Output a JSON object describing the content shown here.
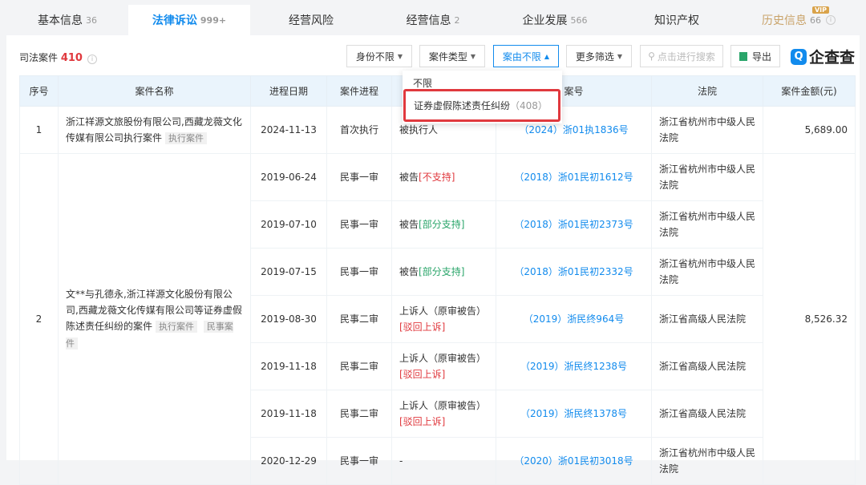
{
  "tabs": [
    {
      "label": "基本信息",
      "count": "36"
    },
    {
      "label": "法律诉讼",
      "count": "999+",
      "active": true
    },
    {
      "label": "经营风险",
      "count": ""
    },
    {
      "label": "经营信息",
      "count": "2"
    },
    {
      "label": "企业发展",
      "count": "566"
    },
    {
      "label": "知识产权",
      "count": ""
    },
    {
      "label": "历史信息",
      "count": "66",
      "badge": "VIP"
    }
  ],
  "section": {
    "title": "司法案件",
    "count": "410"
  },
  "filters": {
    "identity": "身份不限",
    "case_type": "案件类型",
    "cause": "案由不限",
    "more": "更多筛选",
    "search_placeholder": "点击进行搜索",
    "export": "导出"
  },
  "logo": "企查查",
  "dropdown": {
    "options": [
      {
        "label": "不限"
      },
      {
        "label": "证券虚假陈述责任纠纷",
        "count": "（408）",
        "highlighted": true
      }
    ]
  },
  "table": {
    "headers": [
      "序号",
      "案件名称",
      "进程日期",
      "案件进程",
      "",
      "案号",
      "法院",
      "案件金额(元)"
    ],
    "cases": [
      {
        "no": "1",
        "name": "浙江祥源文旅股份有限公司,西藏龙薇文化传媒有限公司执行案件",
        "tags": [
          "执行案件"
        ],
        "amount": "5,689.00",
        "rows": [
          {
            "date": "2024-11-13",
            "stage": "首次执行",
            "role": "被执行人",
            "result": "",
            "result_color": "",
            "case_no": "（2024）浙01执1836号",
            "court": "浙江省杭州市中级人民法院"
          }
        ]
      },
      {
        "no": "2",
        "name": "文**与孔德永,浙江祥源文化股份有限公司,西藏龙薇文化传媒有限公司等证券虚假陈述责任纠纷的案件",
        "tags": [
          "执行案件",
          "民事案件"
        ],
        "amount": "8,526.32",
        "rows": [
          {
            "date": "2019-06-24",
            "stage": "民事一审",
            "role": "被告",
            "result": "[不支持]",
            "result_color": "red",
            "case_no": "（2018）浙01民初1612号",
            "court": "浙江省杭州市中级人民法院"
          },
          {
            "date": "2019-07-10",
            "stage": "民事一审",
            "role": "被告",
            "result": "[部分支持]",
            "result_color": "green",
            "case_no": "（2018）浙01民初2373号",
            "court": "浙江省杭州市中级人民法院"
          },
          {
            "date": "2019-07-15",
            "stage": "民事一审",
            "role": "被告",
            "result": "[部分支持]",
            "result_color": "green",
            "case_no": "（2018）浙01民初2332号",
            "court": "浙江省杭州市中级人民法院"
          },
          {
            "date": "2019-08-30",
            "stage": "民事二审",
            "role": "上诉人（原审被告）",
            "result": "[驳回上诉]",
            "result_color": "red",
            "case_no": "（2019）浙民终964号",
            "court": "浙江省高级人民法院"
          },
          {
            "date": "2019-11-18",
            "stage": "民事二审",
            "role": "上诉人（原审被告）",
            "result": "[驳回上诉]",
            "result_color": "red",
            "case_no": "（2019）浙民终1238号",
            "court": "浙江省高级人民法院"
          },
          {
            "date": "2019-11-18",
            "stage": "民事二审",
            "role": "上诉人（原审被告）",
            "result": "[驳回上诉]",
            "result_color": "red",
            "case_no": "（2019）浙民终1378号",
            "court": "浙江省高级人民法院"
          },
          {
            "date": "2020-12-29",
            "stage": "民事一审",
            "role": "-",
            "result": "",
            "result_color": "",
            "case_no": "（2020）浙01民初3018号",
            "court": "浙江省杭州市中级人民法院"
          }
        ]
      }
    ]
  },
  "colors": {
    "accent": "#128bed",
    "red": "#e0393e",
    "green": "#2aa56a"
  }
}
